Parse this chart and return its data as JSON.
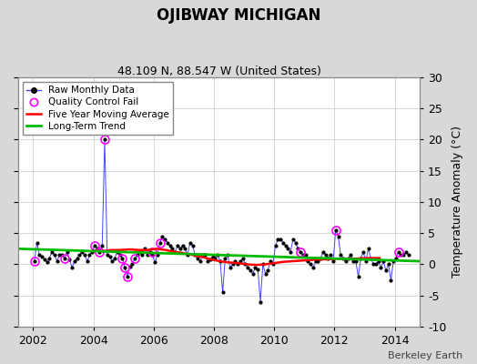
{
  "title": "OJIBWAY MICHIGAN",
  "subtitle": "48.109 N, 88.547 W (United States)",
  "ylabel": "Temperature Anomaly (°C)",
  "attribution": "Berkeley Earth",
  "xlim": [
    2001.5,
    2014.83
  ],
  "ylim": [
    -10,
    30
  ],
  "yticks": [
    -10,
    -5,
    0,
    5,
    10,
    15,
    20,
    25,
    30
  ],
  "xticks": [
    2002,
    2004,
    2006,
    2008,
    2010,
    2012,
    2014
  ],
  "background_color": "#d8d8d8",
  "plot_background": "#ffffff",
  "raw_color": "#4444ff",
  "moving_avg_color": "#ff0000",
  "trend_color": "#00bb00",
  "qc_fail_color": "#ff00ff",
  "raw_data_x": [
    2002.042,
    2002.125,
    2002.208,
    2002.292,
    2002.375,
    2002.458,
    2002.542,
    2002.625,
    2002.708,
    2002.792,
    2002.875,
    2002.958,
    2003.042,
    2003.125,
    2003.208,
    2003.292,
    2003.375,
    2003.458,
    2003.542,
    2003.625,
    2003.708,
    2003.792,
    2003.875,
    2003.958,
    2004.042,
    2004.125,
    2004.208,
    2004.292,
    2004.375,
    2004.458,
    2004.542,
    2004.625,
    2004.708,
    2004.792,
    2004.875,
    2004.958,
    2005.042,
    2005.125,
    2005.208,
    2005.292,
    2005.375,
    2005.458,
    2005.542,
    2005.625,
    2005.708,
    2005.792,
    2005.875,
    2005.958,
    2006.042,
    2006.125,
    2006.208,
    2006.292,
    2006.375,
    2006.458,
    2006.542,
    2006.625,
    2006.708,
    2006.792,
    2006.875,
    2006.958,
    2007.042,
    2007.125,
    2007.208,
    2007.292,
    2007.375,
    2007.458,
    2007.542,
    2007.625,
    2007.708,
    2007.792,
    2007.875,
    2007.958,
    2008.042,
    2008.125,
    2008.208,
    2008.292,
    2008.375,
    2008.458,
    2008.542,
    2008.625,
    2008.708,
    2008.792,
    2008.875,
    2008.958,
    2009.042,
    2009.125,
    2009.208,
    2009.292,
    2009.375,
    2009.458,
    2009.542,
    2009.625,
    2009.708,
    2009.792,
    2009.875,
    2009.958,
    2010.042,
    2010.125,
    2010.208,
    2010.292,
    2010.375,
    2010.458,
    2010.542,
    2010.625,
    2010.708,
    2010.792,
    2010.875,
    2010.958,
    2011.042,
    2011.125,
    2011.208,
    2011.292,
    2011.375,
    2011.458,
    2011.542,
    2011.625,
    2011.708,
    2011.792,
    2011.875,
    2011.958,
    2012.042,
    2012.125,
    2012.208,
    2012.292,
    2012.375,
    2012.458,
    2012.542,
    2012.625,
    2012.708,
    2012.792,
    2012.875,
    2012.958,
    2013.042,
    2013.125,
    2013.208,
    2013.292,
    2013.375,
    2013.458,
    2013.542,
    2013.625,
    2013.708,
    2013.792,
    2013.875,
    2013.958,
    2014.042,
    2014.125,
    2014.208,
    2014.292,
    2014.375,
    2014.458
  ],
  "raw_data_y": [
    0.5,
    3.5,
    1.5,
    1.2,
    0.8,
    0.3,
    1.0,
    2.0,
    1.5,
    0.5,
    1.5,
    1.5,
    1.0,
    2.0,
    0.8,
    -0.5,
    0.5,
    1.0,
    1.5,
    2.0,
    1.5,
    0.5,
    1.5,
    2.0,
    3.0,
    2.5,
    2.0,
    3.0,
    20.0,
    1.5,
    1.2,
    0.5,
    1.0,
    2.0,
    1.5,
    1.0,
    -0.5,
    -2.0,
    -0.3,
    0.0,
    1.0,
    1.5,
    2.0,
    1.5,
    2.5,
    1.5,
    2.0,
    1.5,
    0.3,
    1.5,
    3.5,
    4.5,
    4.0,
    3.5,
    3.0,
    2.5,
    2.0,
    3.0,
    2.5,
    3.0,
    2.5,
    1.5,
    3.5,
    3.0,
    1.5,
    1.0,
    0.5,
    1.5,
    1.5,
    0.5,
    0.8,
    1.2,
    1.0,
    1.5,
    0.5,
    -4.5,
    1.0,
    1.5,
    -0.5,
    0.0,
    0.5,
    0.0,
    0.5,
    1.0,
    0.0,
    -0.5,
    -1.0,
    -1.5,
    -0.5,
    -0.8,
    -6.0,
    0.0,
    -1.5,
    -1.0,
    0.5,
    0.0,
    3.0,
    4.0,
    4.0,
    3.5,
    3.0,
    2.5,
    2.0,
    4.0,
    3.5,
    2.5,
    2.0,
    1.5,
    1.5,
    0.5,
    0.0,
    -0.5,
    0.5,
    0.5,
    1.0,
    2.0,
    1.5,
    1.0,
    1.5,
    0.5,
    5.5,
    4.5,
    1.5,
    1.0,
    0.5,
    1.0,
    1.5,
    0.5,
    0.5,
    -2.0,
    1.0,
    2.0,
    0.5,
    2.5,
    1.0,
    0.0,
    0.0,
    0.5,
    -0.5,
    0.5,
    -1.0,
    0.0,
    -2.5,
    0.5,
    1.0,
    2.0,
    1.5,
    1.5,
    2.0,
    1.5
  ],
  "qc_fail_x": [
    2002.042,
    2003.042,
    2004.042,
    2004.208,
    2004.375,
    2004.958,
    2005.042,
    2005.125,
    2005.375,
    2005.958,
    2006.208,
    2010.875,
    2012.042,
    2014.125
  ],
  "qc_fail_y": [
    0.5,
    1.0,
    3.0,
    2.0,
    20.0,
    1.0,
    -0.5,
    -2.0,
    1.0,
    2.0,
    3.5,
    2.0,
    5.5,
    2.0
  ],
  "moving_avg_x": [
    2004.0,
    2004.3,
    2004.6,
    2004.9,
    2005.2,
    2005.5,
    2005.8,
    2006.1,
    2006.4,
    2006.7,
    2007.0,
    2007.3,
    2007.6,
    2007.9,
    2008.2,
    2008.5,
    2008.8,
    2009.1,
    2009.4,
    2009.7,
    2010.0,
    2010.3,
    2010.6,
    2010.9,
    2011.2,
    2011.5,
    2011.8,
    2012.1,
    2012.4,
    2012.7,
    2013.0,
    2013.3,
    2013.5
  ],
  "moving_avg_y": [
    2.2,
    2.1,
    2.3,
    2.3,
    2.4,
    2.3,
    2.3,
    2.5,
    2.3,
    2.0,
    1.8,
    1.5,
    1.2,
    0.8,
    0.5,
    0.3,
    0.2,
    0.0,
    -0.1,
    0.0,
    0.2,
    0.4,
    0.5,
    0.6,
    0.7,
    0.8,
    0.8,
    0.9,
    0.9,
    0.9,
    1.0,
    1.0,
    1.0
  ],
  "trend_x": [
    2001.5,
    2014.83
  ],
  "trend_y": [
    2.5,
    0.5
  ]
}
